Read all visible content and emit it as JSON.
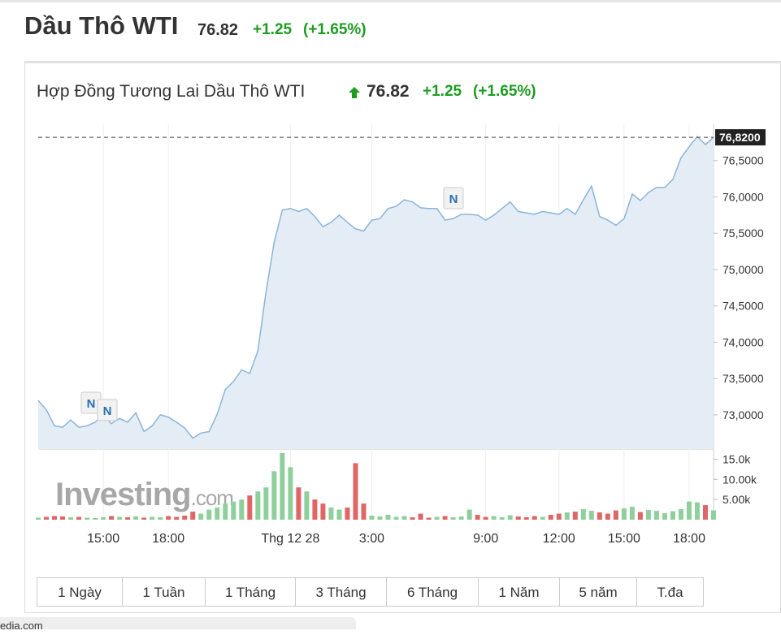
{
  "header": {
    "title": "Dầu Thô WTI",
    "price": "76.82",
    "change": "+1.25",
    "change_pct": "(+1.65%)"
  },
  "widget": {
    "title": "Hợp Đồng Tương Lai Dầu Thô WTI",
    "price": "76.82",
    "change": "+1.25",
    "change_pct": "(+1.65%)",
    "annotations": [
      "N",
      "N",
      "N"
    ],
    "watermark": {
      "brand": "Investing",
      "suffix": ".com"
    },
    "ranges": [
      "1 Ngày",
      "1 Tuần",
      "1 Tháng",
      "3 Tháng",
      "6 Tháng",
      "1 Năm",
      "5 năm",
      "T.đa"
    ],
    "footer_url": "edia.com"
  },
  "chart_data": [
    {
      "type": "area",
      "color": "#8ab4d9",
      "fill": "#e4edf6",
      "categories": [
        null,
        null,
        null,
        null,
        null,
        null,
        null,
        null,
        "15:00",
        null,
        null,
        null,
        null,
        null,
        null,
        null,
        "18:00",
        null,
        null,
        null,
        null,
        null,
        null,
        null,
        null,
        null,
        null,
        null,
        null,
        null,
        null,
        "Thg 12 28",
        null,
        null,
        null,
        null,
        null,
        null,
        null,
        null,
        null,
        "3:00",
        null,
        null,
        null,
        null,
        null,
        null,
        null,
        null,
        null,
        null,
        null,
        null,
        null,
        "9:00",
        null,
        null,
        null,
        null,
        null,
        null,
        null,
        null,
        "12:00",
        null,
        null,
        null,
        null,
        null,
        null,
        null,
        "15:00",
        null,
        null,
        null,
        null,
        null,
        null,
        null,
        "18:00",
        null,
        null,
        null
      ],
      "values": [
        73.2,
        73.07,
        72.85,
        72.83,
        72.93,
        72.83,
        72.85,
        72.9,
        73.0,
        72.88,
        72.95,
        72.9,
        73.03,
        72.77,
        72.85,
        73.0,
        72.97,
        72.9,
        72.82,
        72.68,
        72.75,
        72.77,
        73.01,
        73.35,
        73.46,
        73.62,
        73.57,
        73.88,
        74.69,
        75.37,
        75.82,
        75.84,
        75.8,
        75.84,
        75.73,
        75.59,
        75.65,
        75.75,
        75.65,
        75.56,
        75.53,
        75.68,
        75.7,
        75.84,
        75.87,
        75.96,
        75.93,
        75.85,
        75.84,
        75.84,
        75.68,
        75.7,
        75.76,
        75.76,
        75.75,
        75.68,
        75.75,
        75.84,
        75.93,
        75.8,
        75.78,
        75.76,
        75.8,
        75.78,
        75.76,
        75.84,
        75.76,
        75.96,
        76.15,
        75.73,
        75.68,
        75.61,
        75.7,
        76.04,
        75.95,
        76.06,
        76.13,
        76.13,
        76.24,
        76.54,
        76.69,
        76.83,
        76.72,
        76.82
      ],
      "ylim": [
        72.53,
        77.0
      ],
      "yticks": [
        {
          "value": 73,
          "label": "73,0000"
        },
        {
          "value": 73.5,
          "label": "73,5000"
        },
        {
          "value": 74,
          "label": "74,0000"
        },
        {
          "value": 74.5,
          "label": "74,5000"
        },
        {
          "value": 75,
          "label": "75,0000"
        },
        {
          "value": 75.5,
          "label": "75,5000"
        },
        {
          "value": 76,
          "label": "76,0000"
        },
        {
          "value": 76.5,
          "label": "76,5000"
        }
      ],
      "last_price": {
        "value": 76.82,
        "label": "76,8200"
      },
      "xgrid": true
    },
    {
      "type": "bar",
      "up_color": "#8fcf9c",
      "down_color": "#e06666",
      "values": [
        500,
        700,
        900,
        800,
        600,
        700,
        500,
        400,
        600,
        900,
        700,
        600,
        800,
        500,
        700,
        600,
        900,
        700,
        1000,
        2000,
        1500,
        2500,
        3000,
        4000,
        4500,
        5000,
        6000,
        7000,
        8000,
        12000,
        16500,
        13000,
        8000,
        7000,
        5000,
        4000,
        3000,
        2500,
        3000,
        14000,
        4000,
        1000,
        800,
        1200,
        700,
        900,
        600,
        1500,
        500,
        700,
        900,
        600,
        800,
        2500,
        1200,
        700,
        900,
        600,
        1100,
        800,
        600,
        900,
        700,
        1200,
        1500,
        1800,
        2000,
        2600,
        2200,
        1800,
        1500,
        2300,
        2800,
        3200,
        1900,
        2400,
        2200,
        1600,
        2100,
        2600,
        4500,
        4300,
        3600,
        2300
      ],
      "ylim": [
        0,
        17500
      ],
      "yticks": [
        {
          "value": 5000,
          "label": "5.00k"
        },
        {
          "value": 10000,
          "label": "10.00k"
        },
        {
          "value": 15000,
          "label": "15.0k"
        }
      ]
    }
  ]
}
